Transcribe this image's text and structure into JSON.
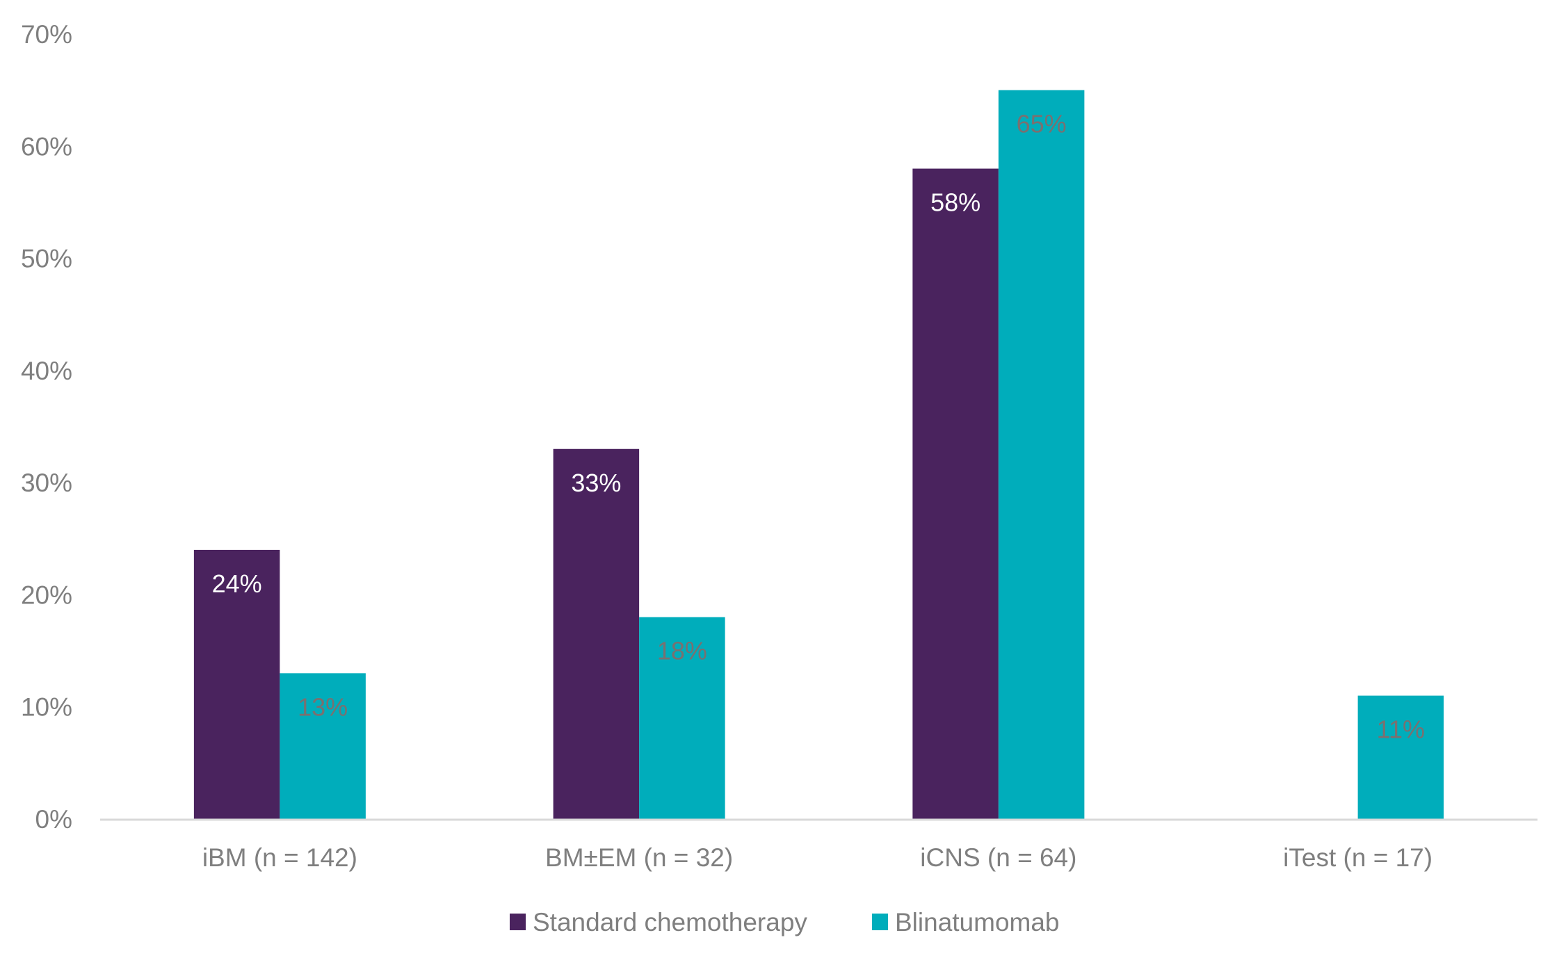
{
  "chart_data": {
    "type": "bar",
    "title": "",
    "xlabel": "",
    "ylabel": "",
    "ylim": [
      0,
      70
    ],
    "yticks": [
      "0%",
      "10%",
      "20%",
      "30%",
      "40%",
      "50%",
      "60%",
      "70%"
    ],
    "ytick_values": [
      0,
      10,
      20,
      30,
      40,
      50,
      60,
      70
    ],
    "grid": false,
    "legend_position": "bottom",
    "categories": [
      "iBM (n = 142)",
      "BM±EM (n = 32)",
      "iCNS (n = 64)",
      "iTest (n = 17)"
    ],
    "series": [
      {
        "name": "Standard chemotherapy",
        "color": "#4a235e",
        "label_color": "#ffffff",
        "values": [
          24,
          33,
          58,
          null
        ],
        "labels": [
          "24%",
          "33%",
          "58%",
          null
        ]
      },
      {
        "name": "Blinatumomab",
        "color": "#00adbb",
        "label_color": "#7a7070",
        "values": [
          13,
          18,
          65,
          11
        ],
        "labels": [
          "13%",
          "18%",
          "65%",
          "11%"
        ]
      }
    ]
  }
}
